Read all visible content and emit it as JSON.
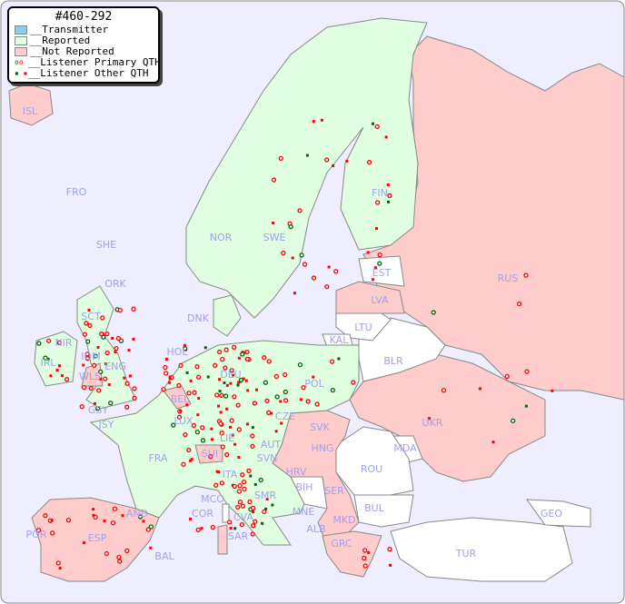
{
  "title": "#460-292",
  "legend": [
    {
      "label": "__Transmitter",
      "color": "#87ceeb"
    },
    {
      "label": "__Reported",
      "color": "#e0ffe0"
    },
    {
      "label": "__Not Reported",
      "color": "#ffcccc"
    },
    {
      "label": "__Listener Primary QTH",
      "icon": "ring-marker"
    },
    {
      "label": "__Listener Other QTH",
      "icon": "square-marker"
    }
  ],
  "colors": {
    "sea": "#eeeeff",
    "reported": "#e0ffe0",
    "not_reported": "#ffcccc",
    "none": "#ffffff",
    "border": "#888888",
    "marker_red": "#ff0000",
    "marker_green": "#006600",
    "label": "#a0a0f0"
  },
  "countries": [
    "ISL",
    "FRO",
    "SHE",
    "ORK",
    "NOR",
    "SWE",
    "FIN",
    "EST",
    "LVA",
    "LTU",
    "RUS",
    "DNK",
    "KAL",
    "BLR",
    "HOL",
    "DEU",
    "POL",
    "IRL",
    "NIR",
    "SCT",
    "IOM",
    "ENG",
    "WLS",
    "GSY",
    "JSY",
    "BEL",
    "LUX",
    "CZE",
    "SVK",
    "UKR",
    "FRA",
    "SUI",
    "LIE",
    "AUT",
    "HNG",
    "MDA",
    "ROU",
    "SVN",
    "HRV",
    "ITA",
    "BIH",
    "SER",
    "BUL",
    "GEO",
    "MCO",
    "SMR",
    "COR",
    "CVA",
    "MNE",
    "ALB",
    "MKD",
    "AND",
    "POR",
    "ESP",
    "SAR",
    "BAL",
    "GRC",
    "TUR"
  ]
}
